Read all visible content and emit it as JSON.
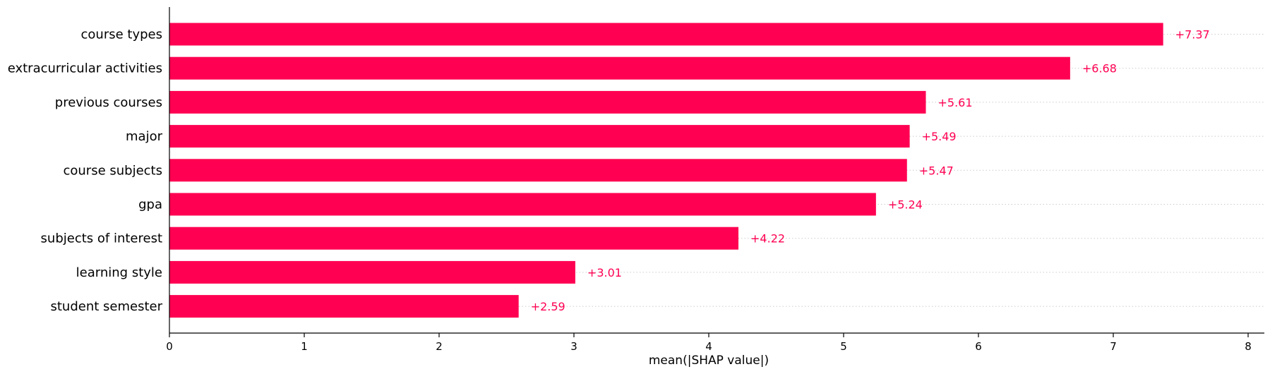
{
  "chart_data": {
    "type": "bar",
    "orientation": "horizontal",
    "categories": [
      "course types",
      "extracurricular activities",
      "previous courses",
      "major",
      "course subjects",
      "gpa",
      "subjects of interest",
      "learning style",
      "student semester"
    ],
    "values": [
      7.37,
      6.68,
      5.61,
      5.49,
      5.47,
      5.24,
      4.22,
      3.01,
      2.59
    ],
    "value_labels": [
      "+7.37",
      "+6.68",
      "+5.61",
      "+5.49",
      "+5.47",
      "+5.24",
      "+4.22",
      "+3.01",
      "+2.59"
    ],
    "xlabel": "mean(|SHAP value|)",
    "ylabel": "",
    "title": "",
    "xlim": [
      0,
      8.1
    ],
    "xticks": [
      0,
      1,
      2,
      3,
      4,
      5,
      6,
      7,
      8
    ],
    "grid": "dotted row guides",
    "bar_color": "#ff0052",
    "label_color": "#ff0052"
  }
}
